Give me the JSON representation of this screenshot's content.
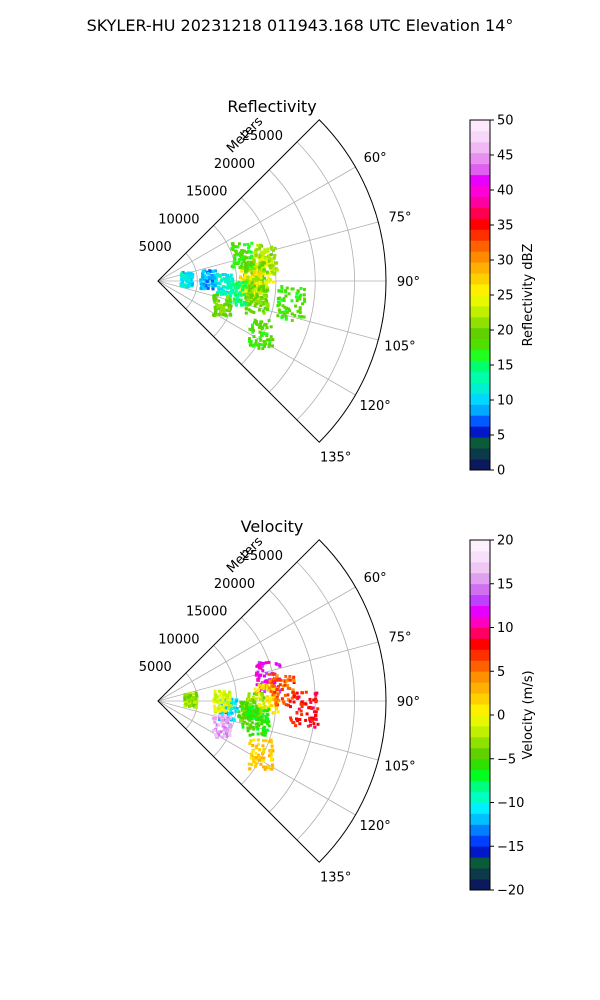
{
  "header": {
    "title": "SKYLER-HU  20231218  011943.168 UTC Elevation 14°"
  },
  "chart_data": [
    {
      "type": "scatter",
      "title": "Reflectivity",
      "radial_label": "Meters",
      "theta_ticks": [
        "60°",
        "75°",
        "90°",
        "105°",
        "120°",
        "135°"
      ],
      "theta_tick_values": [
        60,
        75,
        90,
        105,
        120,
        135
      ],
      "theta_range": [
        45,
        135
      ],
      "r_ticks": [
        "5000",
        "10000",
        "15000",
        "20000",
        "25000"
      ],
      "r_tick_values": [
        5000,
        10000,
        15000,
        20000,
        25000
      ],
      "r_range": [
        0,
        29000
      ],
      "grid": true,
      "colorbar": {
        "label": "Reflectivity dBZ",
        "range": [
          0,
          50
        ],
        "ticks": [
          "0",
          "5",
          "10",
          "15",
          "20",
          "25",
          "30",
          "35",
          "40",
          "45",
          "50"
        ],
        "tick_values": [
          0,
          5,
          10,
          15,
          20,
          25,
          30,
          35,
          40,
          45,
          50
        ],
        "colors": [
          "#0a1a5c",
          "#0d3a4a",
          "#0b5a3a",
          "#0018c8",
          "#005aff",
          "#00aaff",
          "#00d8ff",
          "#00f0d0",
          "#00ffa8",
          "#00ff70",
          "#20ff20",
          "#50e000",
          "#60d000",
          "#90e000",
          "#c0f000",
          "#e8f800",
          "#fff000",
          "#ffd000",
          "#ffb000",
          "#ff8a00",
          "#ff6000",
          "#ff3000",
          "#ff0000",
          "#ff0050",
          "#ff00a0",
          "#ff00d8",
          "#e800ff",
          "#e060f0",
          "#e890f0",
          "#f0b8f4",
          "#f8d8f8",
          "#fde8fd"
        ]
      },
      "echoes": [
        {
          "theta": 83,
          "r": 13200,
          "value": 24
        },
        {
          "theta": 78,
          "r": 13800,
          "value": 22
        },
        {
          "theta": 86,
          "r": 12000,
          "value": 20
        },
        {
          "theta": 91,
          "r": 11600,
          "value": 26
        },
        {
          "theta": 95,
          "r": 12400,
          "value": 22
        },
        {
          "theta": 100,
          "r": 12600,
          "value": 20
        },
        {
          "theta": 98,
          "r": 10000,
          "value": 15
        },
        {
          "theta": 92,
          "r": 8200,
          "value": 12
        },
        {
          "theta": 87,
          "r": 6200,
          "value": 9
        },
        {
          "theta": 84,
          "r": 3500,
          "value": 11
        },
        {
          "theta": 110,
          "r": 8500,
          "value": 20
        },
        {
          "theta": 99,
          "r": 17000,
          "value": 18
        },
        {
          "theta": 117,
          "r": 14500,
          "value": 18
        },
        {
          "theta": 72,
          "r": 11000,
          "value": 18
        }
      ]
    },
    {
      "type": "scatter",
      "title": "Velocity",
      "radial_label": "Meters",
      "theta_ticks": [
        "60°",
        "75°",
        "90°",
        "105°",
        "120°",
        "135°"
      ],
      "theta_tick_values": [
        60,
        75,
        90,
        105,
        120,
        135
      ],
      "theta_range": [
        45,
        135
      ],
      "r_ticks": [
        "5000",
        "10000",
        "15000",
        "20000",
        "25000"
      ],
      "r_tick_values": [
        5000,
        10000,
        15000,
        20000,
        25000
      ],
      "r_range": [
        0,
        29000
      ],
      "grid": true,
      "colorbar": {
        "label": "Velocity (m/s)",
        "range": [
          -20,
          20
        ],
        "ticks": [
          "−20",
          "−15",
          "−10",
          "−5",
          "0",
          "5",
          "10",
          "15",
          "20"
        ],
        "tick_values": [
          -20,
          -15,
          -10,
          -5,
          0,
          5,
          10,
          15,
          20
        ],
        "colors": [
          "#0a1a5c",
          "#0d3a4a",
          "#0b5a3a",
          "#0018c8",
          "#0040ff",
          "#0080ff",
          "#00c0ff",
          "#00f0ff",
          "#00ffc0",
          "#00ff80",
          "#00ff20",
          "#30e000",
          "#60d000",
          "#90e000",
          "#c0f000",
          "#e8f800",
          "#fff000",
          "#ffd000",
          "#ffb000",
          "#ff9000",
          "#ff6000",
          "#ff3000",
          "#ff0000",
          "#ff0060",
          "#ff00c0",
          "#e800ff",
          "#c040ff",
          "#d070f0",
          "#e0a0f0",
          "#f0c8f4",
          "#f8e0fa",
          "#fdf0fd"
        ]
      },
      "echoes": [
        {
          "theta": 77,
          "r": 14200,
          "value": 12
        },
        {
          "theta": 88,
          "r": 13600,
          "value": 1
        },
        {
          "theta": 84,
          "r": 15600,
          "value": 6
        },
        {
          "theta": 92,
          "r": 12000,
          "value": -3
        },
        {
          "theta": 98,
          "r": 11400,
          "value": -5
        },
        {
          "theta": 96,
          "r": 8800,
          "value": -11
        },
        {
          "theta": 101,
          "r": 12800,
          "value": -6
        },
        {
          "theta": 89,
          "r": 8000,
          "value": -1
        },
        {
          "theta": 86,
          "r": 4000,
          "value": -3
        },
        {
          "theta": 111,
          "r": 8500,
          "value": 16
        },
        {
          "theta": 117,
          "r": 14500,
          "value": 2
        },
        {
          "theta": 93,
          "r": 18500,
          "value": 8
        }
      ]
    }
  ]
}
